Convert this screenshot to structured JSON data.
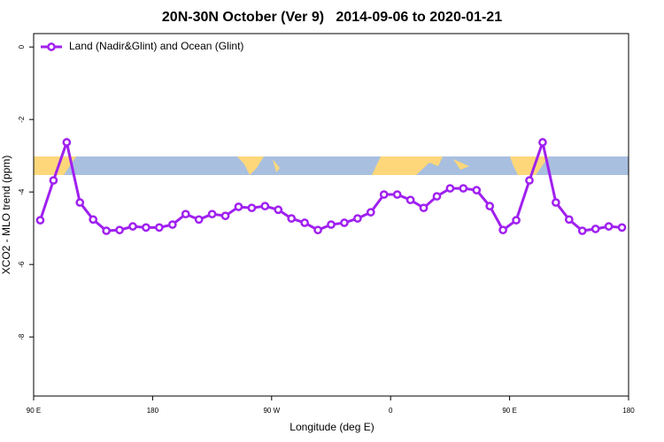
{
  "chart_data": {
    "type": "line",
    "title": "20N-30N October (Ver 9)   2014-09-06 to 2020-01-21",
    "xlabel": "Longitude (deg E)",
    "ylabel": "XCO2 - MLO trend (ppm)",
    "xlim": [
      90,
      540
    ],
    "ylim": [
      -9.63,
      0.37
    ],
    "xticks": [
      {
        "value": 90,
        "label": "90 E"
      },
      180,
      {
        "value": 270,
        "label": "90 W"
      },
      {
        "value": 360,
        "label": "0"
      },
      {
        "value": 450,
        "label": "90 E"
      },
      {
        "value": 540,
        "label": "180"
      }
    ],
    "yticks": [
      0,
      -2,
      -4,
      -6,
      -8
    ],
    "legend": "top-left",
    "series": [
      {
        "name": "Land (Nadir&Glint) and Ocean (Glint)",
        "color": "#a020f0",
        "x": [
          95,
          105,
          115,
          125,
          135,
          145,
          155,
          165,
          175,
          185,
          195,
          205,
          215,
          225,
          235,
          245,
          255,
          265,
          275,
          285,
          295,
          305,
          315,
          325,
          335,
          345,
          355,
          365,
          375,
          385,
          395,
          405,
          415,
          425,
          435,
          445,
          455,
          465,
          475,
          485,
          495,
          505,
          515,
          525,
          535
        ],
        "values": [
          -4.78,
          -3.68,
          -2.63,
          -4.29,
          -4.76,
          -5.07,
          -5.05,
          -4.95,
          -4.98,
          -4.98,
          -4.9,
          -4.61,
          -4.76,
          -4.61,
          -4.66,
          -4.41,
          -4.44,
          -4.39,
          -4.49,
          -4.73,
          -4.85,
          -5.05,
          -4.9,
          -4.85,
          -4.73,
          -4.56,
          -4.07,
          -4.07,
          -4.22,
          -4.44,
          -4.12,
          -3.9,
          -3.9,
          -3.95,
          -4.39,
          -5.05,
          -4.78,
          -3.68,
          -2.63,
          -4.29,
          -4.76,
          -5.07,
          -5.02,
          -4.95,
          -4.98
        ]
      }
    ]
  }
}
